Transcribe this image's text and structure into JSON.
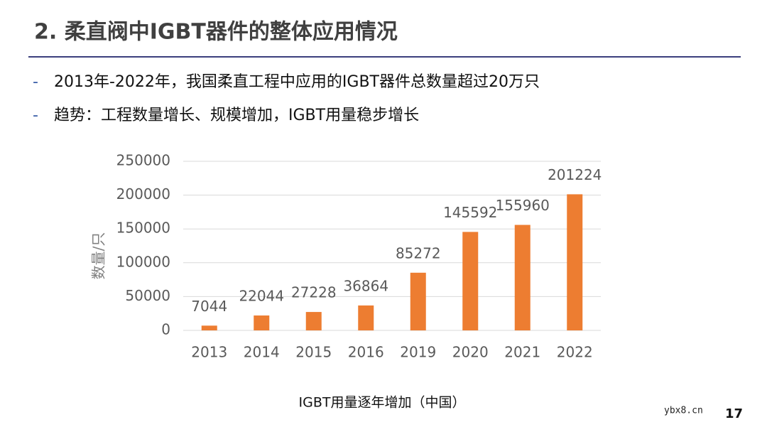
{
  "header": {
    "title": "2. 柔直阀中IGBT器件的整体应用情况"
  },
  "bullets": [
    "2013年-2022年，我国柔直工程中应用的IGBT器件总数量超过20万只",
    "趋势：工程数量增长、规模增加，IGBT用量稳步增长"
  ],
  "bullet_marker": "-",
  "chart_data": {
    "type": "bar",
    "title": "IGBT用量逐年增加（中国）",
    "y_label": "数量/只",
    "categories": [
      "2013",
      "2014",
      "2015",
      "2016",
      "2019",
      "2020",
      "2021",
      "2022"
    ],
    "values": [
      7044,
      22044,
      27228,
      36864,
      85272,
      145592,
      155960,
      201224
    ],
    "color": "#ed7d31",
    "ylim": [
      0,
      250000
    ],
    "yticks": [
      0,
      50000,
      100000,
      150000,
      200000,
      250000
    ],
    "grid": true
  },
  "watermark": "ybx8.cn",
  "page_number": "17"
}
